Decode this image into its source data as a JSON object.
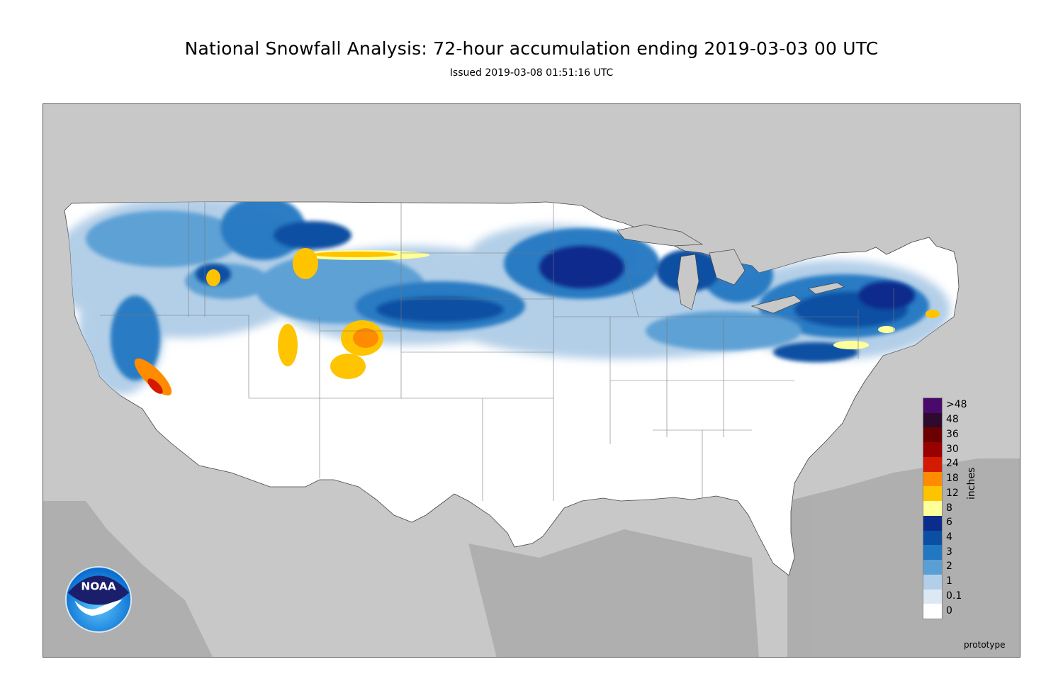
{
  "title": "National Snowfall Analysis: 72-hour accumulation ending 2019-03-03 00 UTC",
  "subtitle": "Issued 2019-03-08 01:51:16 UTC",
  "footer_note": "prototype",
  "logo_text": "NOAA",
  "legend": {
    "units": "inches",
    "labels": [
      ">48",
      "48",
      "36",
      "30",
      "24",
      "18",
      "12",
      "8",
      "6",
      "4",
      "3",
      "2",
      "1",
      "0.1",
      "0"
    ],
    "colors": [
      "#4a0a6b",
      "#2e0a2e",
      "#6b0000",
      "#990000",
      "#d41a00",
      "#ff8c00",
      "#ffc400",
      "#ffff99",
      "#0c2c8c",
      "#0a4fa2",
      "#2277c1",
      "#5a9fd4",
      "#b3cfe8",
      "#dce9f5",
      "#ffffff"
    ]
  },
  "colors": {
    "land_background": "#c8c8c8",
    "conus_fill": "#ffffff",
    "border_line": "#555555"
  }
}
